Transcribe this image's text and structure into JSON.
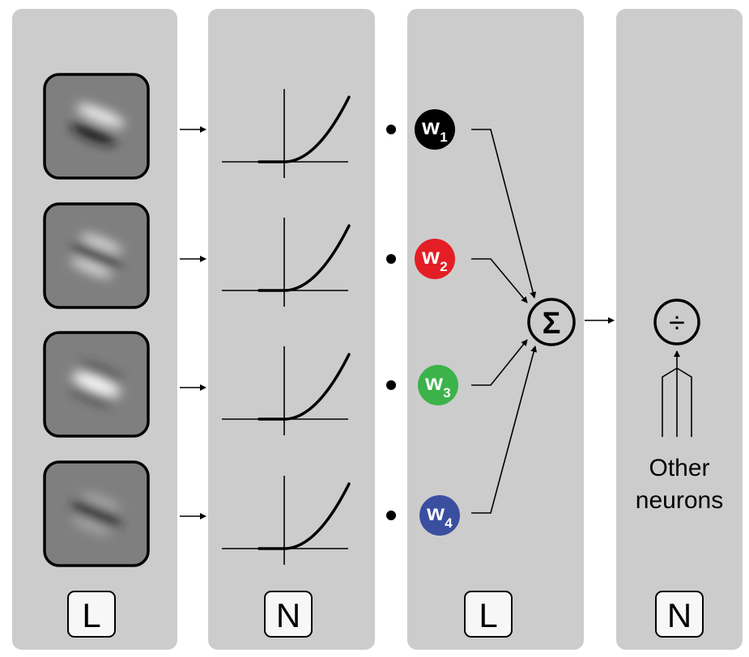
{
  "panels": [
    {
      "id": "linear-filters",
      "label": "L"
    },
    {
      "id": "nonlinearity",
      "label": "N"
    },
    {
      "id": "weighted-sum",
      "label": "L"
    },
    {
      "id": "normalization",
      "label": "N"
    }
  ],
  "weights": [
    {
      "letter": "w",
      "subscript": "1",
      "color": "#000000"
    },
    {
      "letter": "w",
      "subscript": "2",
      "color": "#e41e25"
    },
    {
      "letter": "w",
      "subscript": "3",
      "color": "#3bb34a"
    },
    {
      "letter": "w",
      "subscript": "4",
      "color": "#3a4f9f"
    }
  ],
  "filters": [
    {
      "polarity": "dark-center-bright-above"
    },
    {
      "polarity": "dark-center-bright-flanks"
    },
    {
      "polarity": "bright-center"
    },
    {
      "polarity": "dark-center"
    }
  ],
  "sum_symbol": "Σ",
  "divide_symbol": "÷",
  "other_neurons": {
    "line1": "Other",
    "line2": "neurons"
  },
  "colors": {
    "panel_bg": "#cccccc",
    "label_box_bg": "#f7f7f7",
    "filter_bg": "#7f7f7f"
  }
}
